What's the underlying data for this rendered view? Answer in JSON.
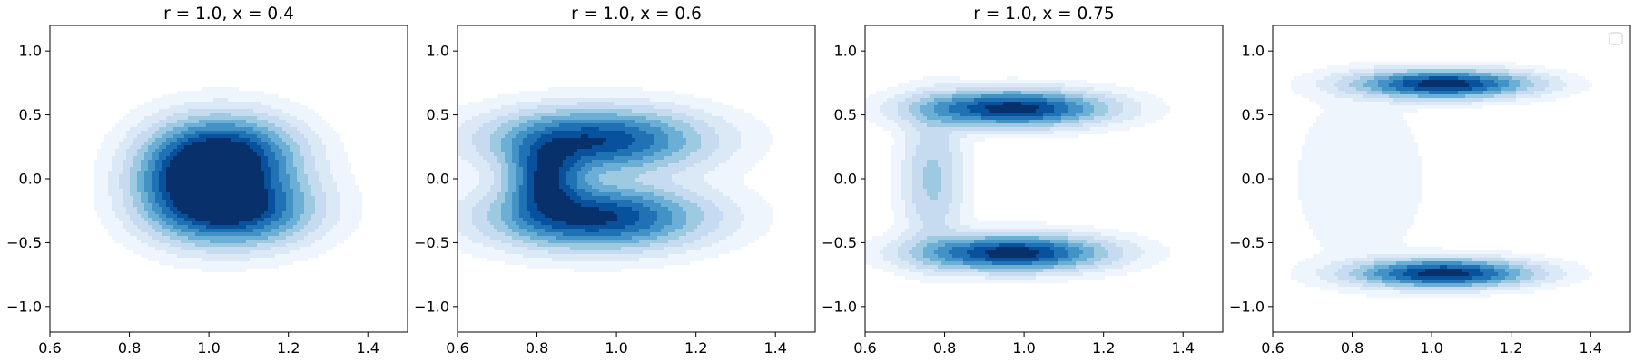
{
  "chart_data": [
    {
      "type": "contour",
      "title": "r = 1.0, x = 0.4",
      "xlim": [
        0.6,
        1.5
      ],
      "ylim": [
        -1.2,
        1.2
      ],
      "x_ticks": [
        "0.6",
        "0.8",
        "1.0",
        "1.2",
        "1.4"
      ],
      "y_ticks": [
        "1.0",
        "0.5",
        "0.0",
        "−0.5",
        "−1.0"
      ],
      "colormap": "Blues",
      "legend": false,
      "density_arms": [
        {
          "center": [
            1.05,
            0.17
          ],
          "spread": [
            0.11,
            0.2
          ],
          "peak": 1.0
        },
        {
          "center": [
            1.07,
            -0.24
          ],
          "spread": [
            0.12,
            0.18
          ],
          "peak": 0.95
        },
        {
          "center": [
            0.94,
            -0.02
          ],
          "spread": [
            0.09,
            0.24
          ],
          "peak": 0.6
        }
      ]
    },
    {
      "type": "contour",
      "title": "r = 1.0, x = 0.6",
      "xlim": [
        0.6,
        1.5
      ],
      "ylim": [
        -1.2,
        1.2
      ],
      "x_ticks": [
        "0.6",
        "0.8",
        "1.0",
        "1.2",
        "1.4"
      ],
      "y_ticks": [
        "1.0",
        "0.5",
        "0.0",
        "−0.5",
        "−1.0"
      ],
      "colormap": "Blues",
      "legend": false,
      "density_arms": [
        {
          "center": [
            0.95,
            0.3
          ],
          "spread": [
            0.17,
            0.16
          ],
          "peak": 0.9
        },
        {
          "center": [
            0.95,
            -0.3
          ],
          "spread": [
            0.17,
            0.16
          ],
          "peak": 0.95
        },
        {
          "center": [
            0.82,
            0.0
          ],
          "spread": [
            0.06,
            0.18
          ],
          "peak": 0.75
        }
      ]
    },
    {
      "type": "contour",
      "title": "r = 1.0, x = 0.75",
      "xlim": [
        0.6,
        1.5
      ],
      "ylim": [
        -1.2,
        1.2
      ],
      "x_ticks": [
        "0.6",
        "0.8",
        "1.0",
        "1.2",
        "1.4"
      ],
      "y_ticks": [
        "1.0",
        "0.5",
        "0.0",
        "−0.5",
        "−1.0"
      ],
      "colormap": "Blues",
      "legend": false,
      "density_arms": [
        {
          "center": [
            0.97,
            0.55
          ],
          "spread": [
            0.15,
            0.09
          ],
          "peak": 1.0
        },
        {
          "center": [
            0.97,
            -0.58
          ],
          "spread": [
            0.15,
            0.09
          ],
          "peak": 1.0
        },
        {
          "center": [
            0.77,
            0.0
          ],
          "spread": [
            0.05,
            0.35
          ],
          "peak": 0.3
        }
      ]
    },
    {
      "type": "contour",
      "title": "",
      "xlim": [
        0.6,
        1.5
      ],
      "ylim": [
        -1.2,
        1.2
      ],
      "x_ticks": [
        "0.6",
        "0.8",
        "1.0",
        "1.2",
        "1.4"
      ],
      "y_ticks": [
        "1.0",
        "0.5",
        "0.0",
        "−0.5",
        "−1.0"
      ],
      "colormap": "Blues",
      "legend": true,
      "legend_position": "top-right",
      "density_arms": [
        {
          "center": [
            1.03,
            0.74
          ],
          "spread": [
            0.14,
            0.07
          ],
          "peak": 1.0
        },
        {
          "center": [
            1.03,
            -0.74
          ],
          "spread": [
            0.14,
            0.07
          ],
          "peak": 1.0
        },
        {
          "center": [
            0.82,
            0.0
          ],
          "spread": [
            0.12,
            0.5
          ],
          "peak": 0.07
        }
      ]
    }
  ]
}
